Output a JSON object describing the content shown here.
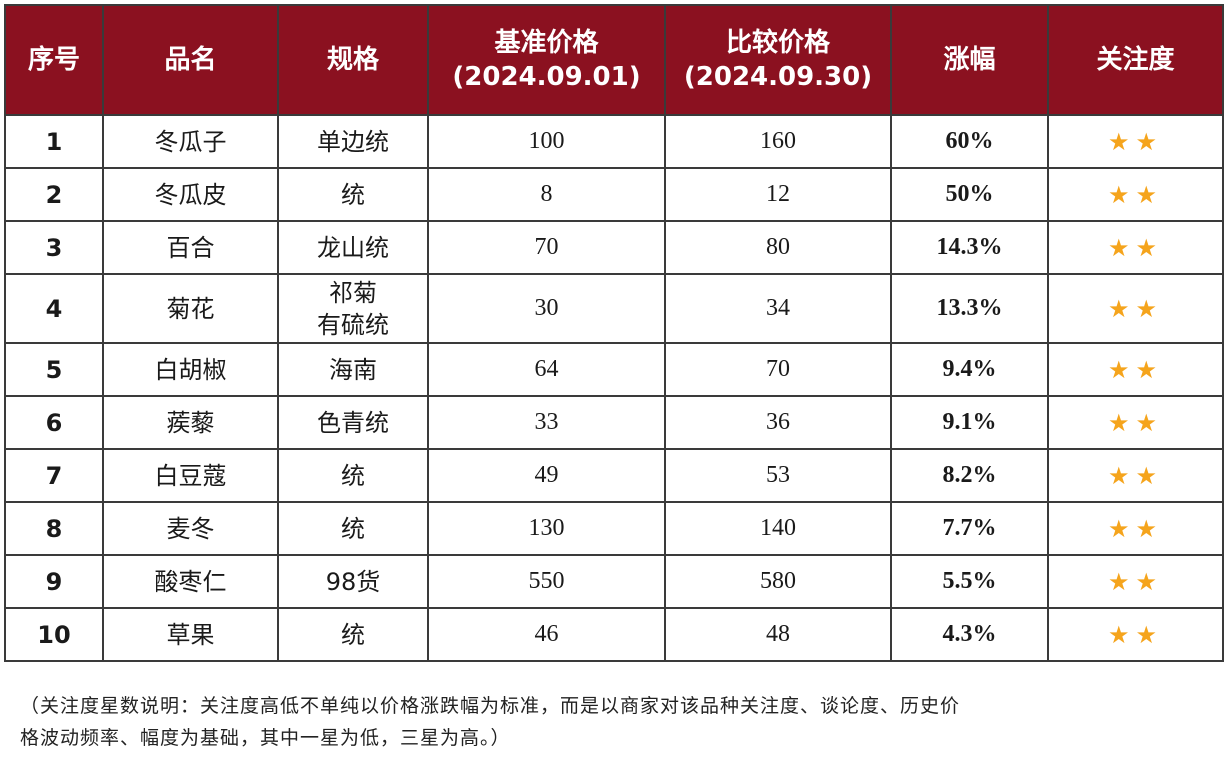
{
  "colors": {
    "header_bg": "#8b1120",
    "change_text": "#e11b1b",
    "star": "#f5a41c"
  },
  "header": {
    "index": "序号",
    "name": "品名",
    "spec": "规格",
    "base_price": "基准价格",
    "base_date": "(2024.09.01)",
    "compare_price": "比较价格",
    "compare_date": "(2024.09.30)",
    "change": "涨幅",
    "attention": "关注度"
  },
  "rows": [
    {
      "index": "1",
      "name": "冬瓜子",
      "spec": [
        "单边统"
      ],
      "base": "100",
      "compare": "160",
      "change": "60%",
      "stars": "★★"
    },
    {
      "index": "2",
      "name": "冬瓜皮",
      "spec": [
        "统"
      ],
      "base": "8",
      "compare": "12",
      "change": "50%",
      "stars": "★★"
    },
    {
      "index": "3",
      "name": "百合",
      "spec": [
        "龙山统"
      ],
      "base": "70",
      "compare": "80",
      "change": "14.3%",
      "stars": "★★"
    },
    {
      "index": "4",
      "name": "菊花",
      "spec": [
        "祁菊",
        "有硫统"
      ],
      "base": "30",
      "compare": "34",
      "change": "13.3%",
      "stars": "★★"
    },
    {
      "index": "5",
      "name": "白胡椒",
      "spec": [
        "海南"
      ],
      "base": "64",
      "compare": "70",
      "change": "9.4%",
      "stars": "★★"
    },
    {
      "index": "6",
      "name": "蒺藜",
      "spec": [
        "色青统"
      ],
      "base": "33",
      "compare": "36",
      "change": "9.1%",
      "stars": "★★"
    },
    {
      "index": "7",
      "name": "白豆蔻",
      "spec": [
        "统"
      ],
      "base": "49",
      "compare": "53",
      "change": "8.2%",
      "stars": "★★"
    },
    {
      "index": "8",
      "name": "麦冬",
      "spec": [
        "统"
      ],
      "base": "130",
      "compare": "140",
      "change": "7.7%",
      "stars": "★★"
    },
    {
      "index": "9",
      "name": "酸枣仁",
      "spec": [
        "98货"
      ],
      "base": "550",
      "compare": "580",
      "change": "5.5%",
      "stars": "★★"
    },
    {
      "index": "10",
      "name": "草果",
      "spec": [
        "统"
      ],
      "base": "46",
      "compare": "48",
      "change": "4.3%",
      "stars": "★★"
    }
  ],
  "footnote": {
    "line1": "（关注度星数说明：关注度高低不单纯以价格涨跌幅为标准，而是以商家对该品种关注度、谈论度、历史价",
    "line2": "格波动频率、幅度为基础，其中一星为低，三星为高。）"
  }
}
